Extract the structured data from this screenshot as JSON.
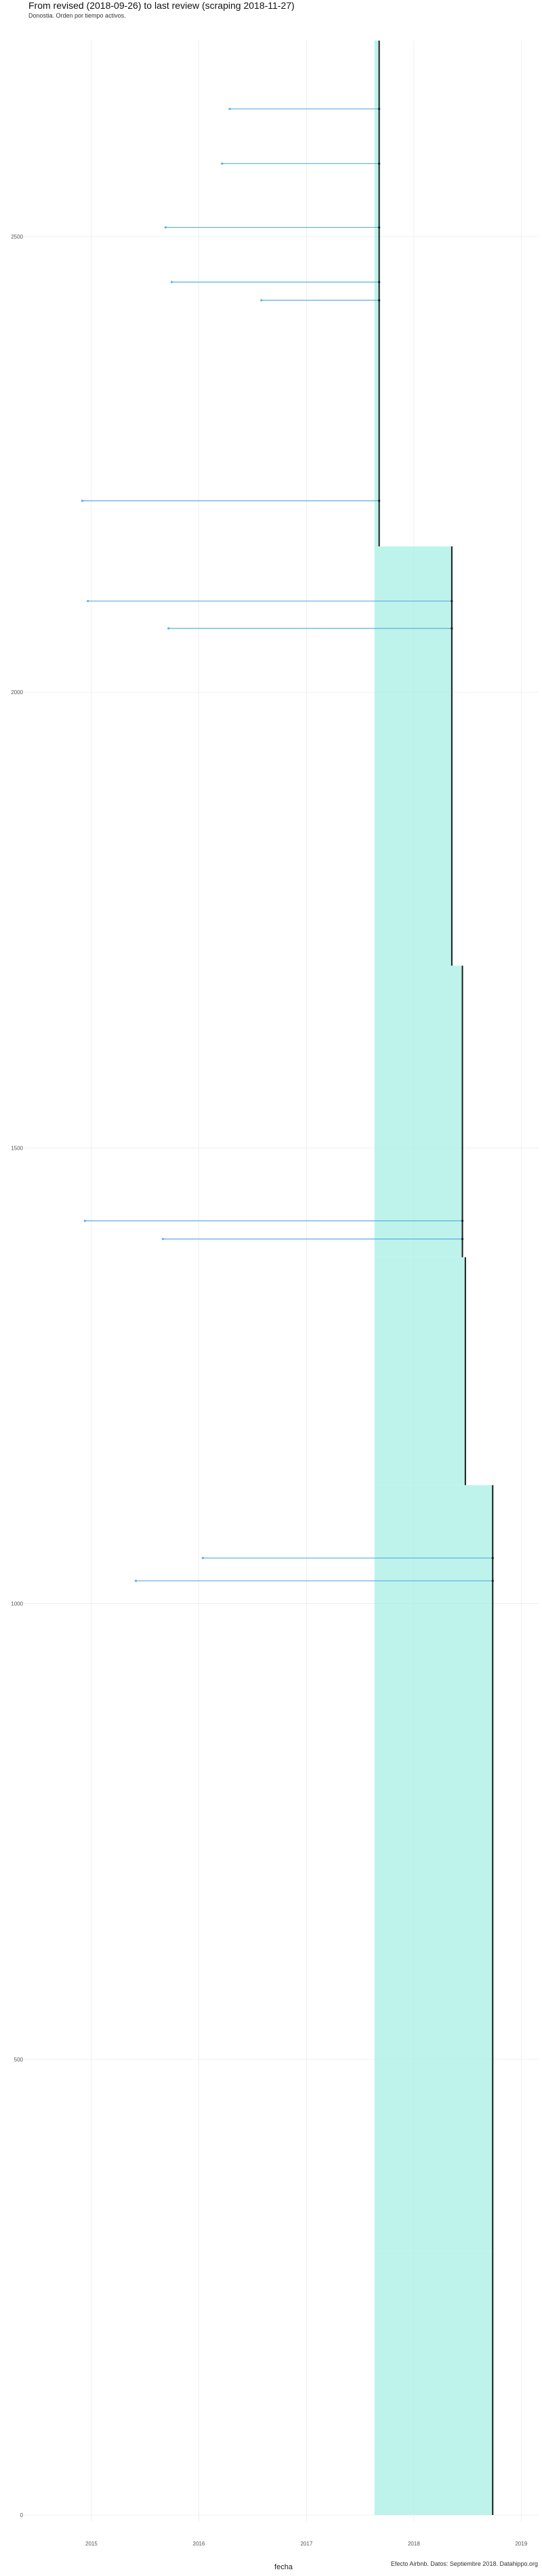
{
  "chart_data": {
    "type": "bar",
    "title": "From revised (2018-09-26) to last review (scraping 2018-11-27)",
    "subtitle": "Donostia. Orden por tiempo activos.",
    "xlabel": "fecha",
    "ylabel": "",
    "caption": "Efecto Airbnb. Datos: Septiembre 2018. Datahippo.org",
    "x_ticks": [
      "2015",
      "2016",
      "2017",
      "2018",
      "2019"
    ],
    "y_ticks": [
      "0",
      "500",
      "1000",
      "1500",
      "2000",
      "2500"
    ],
    "xlim": [
      "2014-06-01",
      "2019-03-01"
    ],
    "ylim": [
      0,
      2700
    ],
    "grid": true,
    "colors": {
      "first_review": "#5aaee0",
      "active_band": "#a8efe5",
      "last_review": "#1a1a1a",
      "highlight": "#87c8e3"
    },
    "line_ranges": [
      {
        "from_index": 0,
        "to_index": 290,
        "last_review": "2018-09-26",
        "first_review_typical": "2017-08-20"
      },
      {
        "from_index": 290,
        "to_index": 1130,
        "last_review": "2018-09-26",
        "first_review_typical": "2017-08-20"
      },
      {
        "from_index": 1130,
        "to_index": 1380,
        "last_review": "2018-06-25",
        "first_review_typical": "2017-08-20"
      },
      {
        "from_index": 1380,
        "to_index": 1700,
        "last_review": "2018-06-15",
        "first_review_typical": "2017-08-20"
      },
      {
        "from_index": 1700,
        "to_index": 2160,
        "last_review": "2018-05-10",
        "first_review_typical": "2017-08-20"
      },
      {
        "from_index": 2160,
        "to_index": 2715,
        "last_review": "2017-09-05",
        "first_review_typical": "2017-08-20"
      }
    ],
    "long_span_examples": [
      {
        "index": 2640,
        "first_review": "2016-04-15"
      },
      {
        "index": 2580,
        "first_review": "2016-03-20"
      },
      {
        "index": 2510,
        "first_review": "2015-09-10"
      },
      {
        "index": 2430,
        "first_review": "2016-08-01"
      },
      {
        "index": 2210,
        "first_review": "2014-12-01"
      },
      {
        "index": 2100,
        "first_review": "2014-12-20"
      },
      {
        "index": 2070,
        "first_review": "2015-09-20"
      },
      {
        "index": 1420,
        "first_review": "2014-12-10"
      },
      {
        "index": 1025,
        "first_review": "2015-06-01"
      },
      {
        "index": 1400,
        "first_review": "2015-09-01"
      },
      {
        "index": 1050,
        "first_review": "2016-01-15"
      },
      {
        "index": 2450,
        "first_review": "2015-10-01"
      }
    ]
  }
}
